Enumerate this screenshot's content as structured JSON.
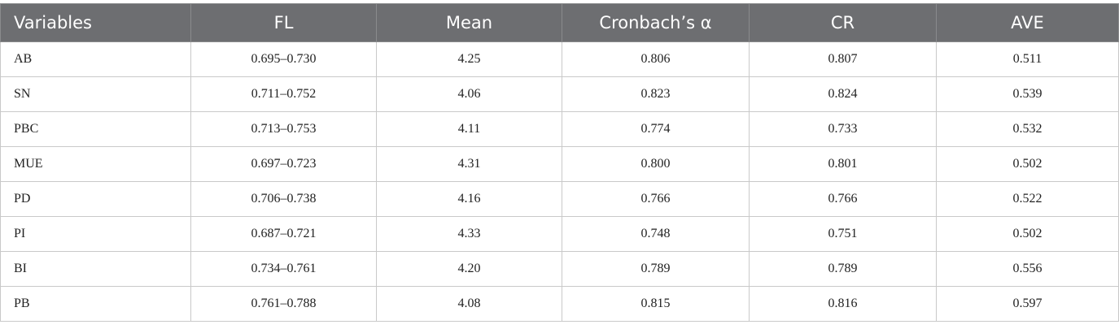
{
  "table": {
    "header": [
      "Variables",
      "FL",
      "Mean",
      "Cronbach’s α",
      "CR",
      "AVE"
    ],
    "rows": [
      [
        "AB",
        "0.695–0.730",
        "4.25",
        "0.806",
        "0.807",
        "0.511"
      ],
      [
        "SN",
        "0.711–0.752",
        "4.06",
        "0.823",
        "0.824",
        "0.539"
      ],
      [
        "PBC",
        "0.713–0.753",
        "4.11",
        "0.774",
        "0.733",
        "0.532"
      ],
      [
        "MUE",
        "0.697–0.723",
        "4.31",
        "0.800",
        "0.801",
        "0.502"
      ],
      [
        "PD",
        "0.706–0.738",
        "4.16",
        "0.766",
        "0.766",
        "0.522"
      ],
      [
        "PI",
        "0.687–0.721",
        "4.33",
        "0.748",
        "0.751",
        "0.502"
      ],
      [
        "BI",
        "0.734–0.761",
        "4.20",
        "0.789",
        "0.789",
        "0.556"
      ],
      [
        "PB",
        "0.761–0.788",
        "4.08",
        "0.815",
        "0.816",
        "0.597"
      ]
    ]
  }
}
